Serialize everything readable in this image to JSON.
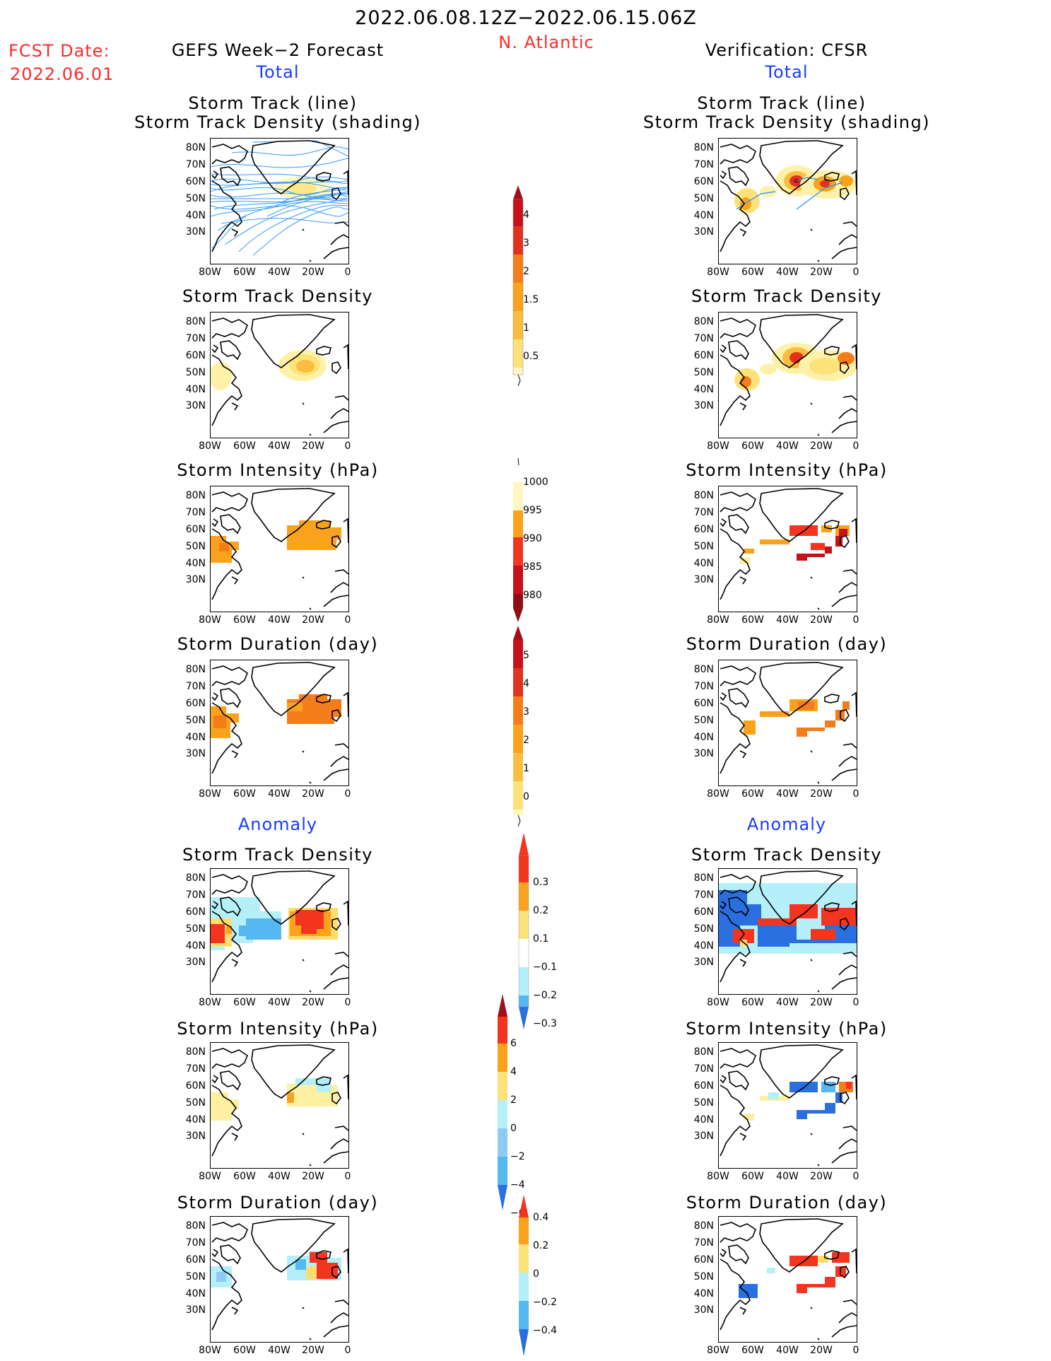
{
  "header": {
    "date_range": "2022.06.08.12Z−2022.06.15.06Z",
    "region": "N. Atlantic",
    "fcst_label": "FCST Date:",
    "fcst_date": "2022.06.01",
    "left_model": "GEFS Week−2 Forecast",
    "right_model": "Verification: CFSR",
    "total_left": "Total",
    "total_right": "Total",
    "anomaly_left": "Anomaly",
    "anomaly_right": "Anomaly"
  },
  "panel_titles": {
    "track_line": "Storm Track (line)",
    "track_shading": "Storm Track Density (shading)",
    "density": "Storm Track Density",
    "intensity": "Storm Intensity (hPa)",
    "duration": "Storm Duration (day)"
  },
  "axes": {
    "lat_labels": [
      "80N",
      "70N",
      "60N",
      "50N",
      "40N",
      "30N"
    ],
    "lon_labels": [
      "80W",
      "60W",
      "40W",
      "20W",
      "0"
    ]
  },
  "colorbars": {
    "density_total": [
      "4",
      "3",
      "2",
      "1.5",
      "1",
      "0.5"
    ],
    "intensity_total": [
      "1000",
      "995",
      "990",
      "985",
      "980"
    ],
    "duration_total": [
      "5",
      "4",
      "3",
      "2",
      "1",
      "0"
    ],
    "density_anom": [
      "0.3",
      "0.2",
      "0.1",
      "−0.1",
      "−0.2",
      "−0.3"
    ],
    "intensity_anom": [
      "6",
      "4",
      "2",
      "0",
      "−2",
      "−4",
      "−6"
    ],
    "duration_anom": [
      "0.4",
      "0.2",
      "0",
      "−0.2",
      "−0.4"
    ]
  },
  "colors": {
    "red_text": "#ff2a2a",
    "blue_text": "#1a3cff",
    "track_line": "#1e90ff"
  }
}
